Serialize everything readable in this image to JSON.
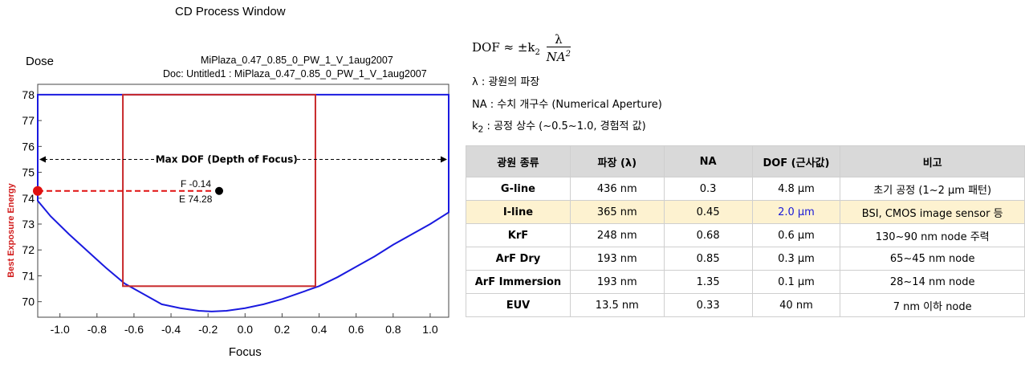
{
  "chart_data": {
    "type": "line",
    "title": "CD Process Window",
    "ylabel_top": "Dose",
    "ylabel_side": "Best Exposure Energy",
    "xlabel": "Focus",
    "file_line1": "MiPlaza_0.47_0.85_0_PW_1_V_1aug2007",
    "file_line2": "Doc: Untitled1 : MiPlaza_0.47_0.85_0_PW_1_V_1aug2007",
    "xlim": [
      -1.12,
      1.1
    ],
    "ylim": [
      69.4,
      78.4
    ],
    "x_ticks": [
      "-1.0",
      "-0.8",
      "-0.6",
      "-0.4",
      "-0.2",
      "0.0",
      "0.2",
      "0.4",
      "0.6",
      "0.8",
      "1.0"
    ],
    "y_ticks": [
      "70",
      "71",
      "72",
      "73",
      "74",
      "75",
      "76",
      "77",
      "78"
    ],
    "window_curve": {
      "color": "#1a1adf",
      "top_dose": 78,
      "points": [
        [
          -1.12,
          73.9
        ],
        [
          -1.05,
          73.3
        ],
        [
          -0.95,
          72.6
        ],
        [
          -0.85,
          71.95
        ],
        [
          -0.75,
          71.3
        ],
        [
          -0.65,
          70.7
        ],
        [
          -0.55,
          70.3
        ],
        [
          -0.45,
          69.9
        ],
        [
          -0.35,
          69.75
        ],
        [
          -0.25,
          69.65
        ],
        [
          -0.18,
          69.62
        ],
        [
          -0.1,
          69.65
        ],
        [
          0.0,
          69.75
        ],
        [
          0.1,
          69.9
        ],
        [
          0.2,
          70.1
        ],
        [
          0.3,
          70.35
        ],
        [
          0.4,
          70.6
        ],
        [
          0.5,
          70.95
        ],
        [
          0.6,
          71.35
        ],
        [
          0.7,
          71.75
        ],
        [
          0.8,
          72.2
        ],
        [
          0.9,
          72.6
        ],
        [
          1.0,
          73.0
        ],
        [
          1.1,
          73.45
        ]
      ]
    },
    "process_rectangle": {
      "color": "#c8282a",
      "x": [
        -0.66,
        0.38
      ],
      "y": [
        70.6,
        78.0
      ]
    },
    "max_dof_label": "Max DOF (Depth of Focus)",
    "max_dof_dose": 75.5,
    "best_point": {
      "focus": -0.14,
      "dose": 74.28,
      "label_f": "F -0.14",
      "label_e": "E 74.28"
    },
    "best_dose_marker": {
      "focus": -1.12,
      "dose": 74.28,
      "color": "#e01010"
    }
  },
  "formula": {
    "lhs": "DOF ≈ ±k",
    "k_sub": "2",
    "numerator": "λ",
    "denominator": "NA",
    "den_sup": "2"
  },
  "definitions": {
    "lambda": "λ : 광원의 파장",
    "na": "NA : 수치 개구수 (Numerical Aperture)",
    "k_prefix": "k",
    "k_sub": "2",
    "k_rest": " : 공정 상수 (~0.5~1.0, 경험적 값)"
  },
  "table": {
    "headers": [
      "광원 종류",
      "파장 (λ)",
      "NA",
      "DOF (근사값)",
      "비고"
    ],
    "rows": [
      [
        "G-line",
        "436 nm",
        "0.3",
        "4.8 μm",
        "초기 공정 (1~2 μm 패턴)"
      ],
      [
        "I-line",
        "365 nm",
        "0.45",
        "2.0 μm",
        "BSI, CMOS image sensor 등"
      ],
      [
        "KrF",
        "248 nm",
        "0.68",
        "0.6 μm",
        "130~90 nm node 주력"
      ],
      [
        "ArF Dry",
        "193 nm",
        "0.85",
        "0.3 μm",
        "65~45 nm node"
      ],
      [
        "ArF Immersion",
        "193 nm",
        "1.35",
        "0.1 μm",
        "28~14 nm node"
      ],
      [
        "EUV",
        "13.5 nm",
        "0.33",
        "40 nm",
        "7 nm 이하 node"
      ]
    ],
    "highlight_row": 1,
    "highlight_color": "#fdf2d0"
  }
}
